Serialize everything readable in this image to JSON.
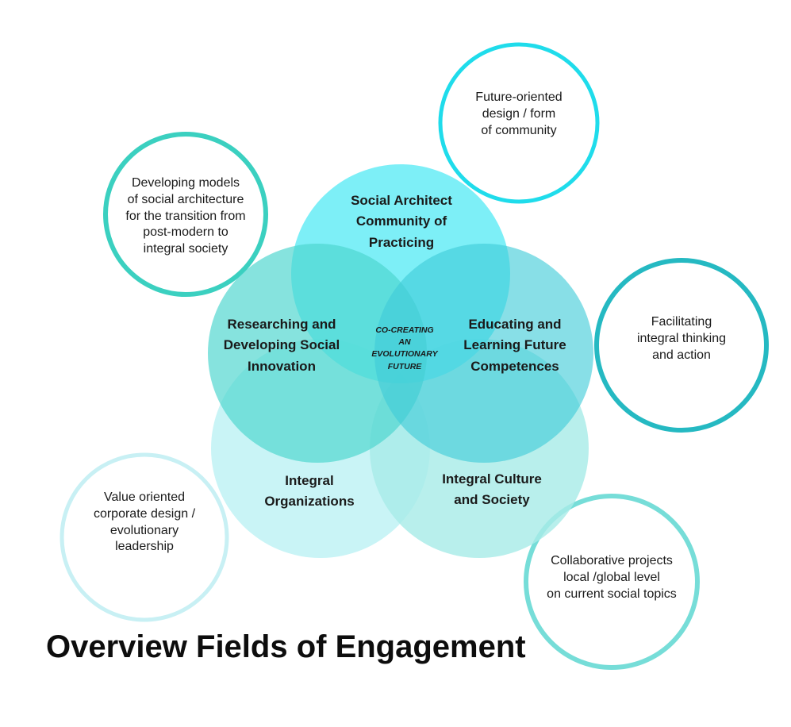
{
  "colors": {
    "social_architect": "#66ECF6",
    "researching": "#4DD6CF",
    "educating": "#3FCCD9",
    "integral_org": "#C6F3F6",
    "integral_culture": "#A8ECE8",
    "bubble_future": "#1FDCEB",
    "bubble_models": "#3BD0C0",
    "bubble_facilitating": "#25B9C2",
    "bubble_value": "#C8F0F4",
    "bubble_collab": "#76DDD8"
  },
  "outer_bubbles": {
    "future_oriented": {
      "lines": [
        "Future-oriented",
        "design / form",
        "of community"
      ]
    },
    "developing_models": {
      "lines": [
        "Developing models",
        "of social architecture",
        "for the transition from",
        "post-modern to",
        "integral society"
      ]
    },
    "facilitating": {
      "lines": [
        "Facilitating",
        "integral thinking",
        "and action"
      ]
    },
    "value_oriented": {
      "lines": [
        "Value oriented",
        "corporate design /",
        "evolutionary",
        "leadership"
      ]
    },
    "collaborative": {
      "lines": [
        "Collaborative projects",
        "local /global  level",
        "on current social topics"
      ]
    }
  },
  "core_circles": {
    "social_architect": {
      "lines": [
        "Social Architect",
        "Community of",
        "Practicing"
      ]
    },
    "researching": {
      "lines": [
        "Researching and",
        "Developing Social",
        "Innovation"
      ]
    },
    "educating": {
      "lines": [
        "Educating and",
        "Learning Future",
        "Competences"
      ]
    },
    "integral_org": {
      "lines": [
        "Integral",
        "Organizations"
      ]
    },
    "integral_culture": {
      "lines": [
        "Integral Culture",
        "and Society"
      ]
    }
  },
  "center": {
    "lines": [
      "CO-CREATING",
      "AN",
      "EVOLUTIONARY",
      "FUTURE"
    ]
  },
  "title": "Overview Fields of Engagement"
}
